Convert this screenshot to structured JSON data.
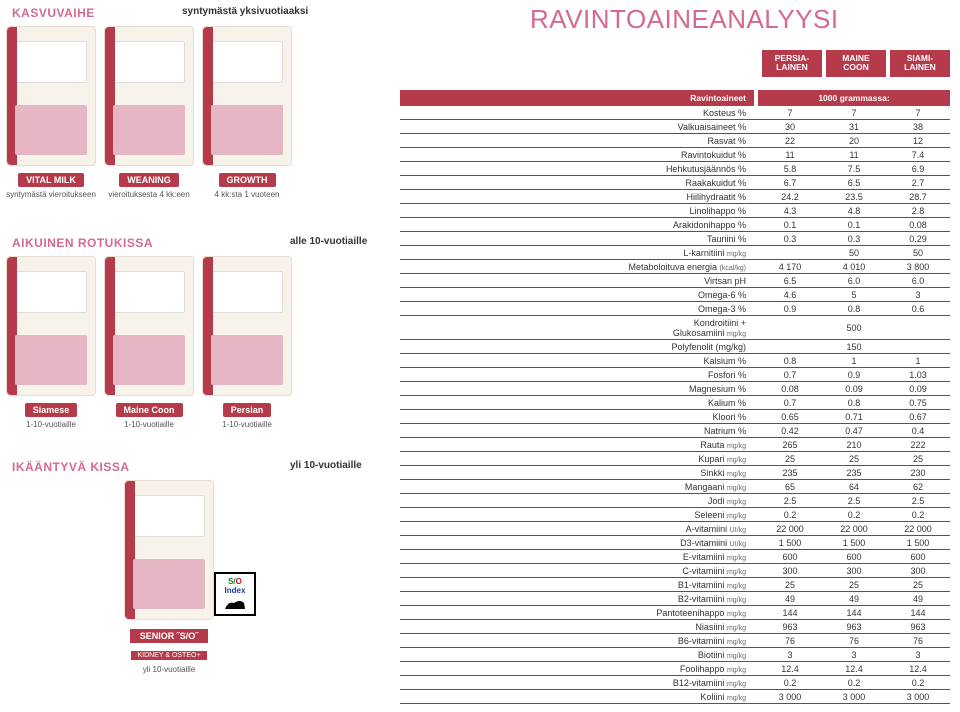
{
  "left": {
    "kasvuvaihe": "KASVUVAIHE",
    "syntymasta_top": "syntymästä yksivuotiaaksi",
    "row1": [
      {
        "pill": "VITAL MILK",
        "sub": "syntymästä vieroitukseen"
      },
      {
        "pill": "WEANING",
        "sub": "vieroituksesta 4 kk:een"
      },
      {
        "pill": "GROWTH",
        "sub": "4 kk:sta 1 vuoteen"
      }
    ],
    "aikuinen": "AIKUINEN ROTUKISSA",
    "alle10": "alle 10-vuotiaille",
    "row2": [
      {
        "pill": "Siamese",
        "sub": "1-10-vuotiaille"
      },
      {
        "pill": "Maine Coon",
        "sub": "1-10-vuotiaille"
      },
      {
        "pill": "Persian",
        "sub": "1-10-vuotiaille"
      }
    ],
    "ikaan": "IKÄÄNTYVÄ KISSA",
    "yli10": "yli 10-vuotiaille",
    "senior": {
      "pill": "SENIOR ˝S/O˝",
      "sub1": "KIDNEY & OSTEO+",
      "sub2": "yli 10-vuotiaille"
    },
    "so_index": {
      "s": "S/",
      "o": "O",
      "idx": "Index"
    }
  },
  "right": {
    "title": "RAVINTOAINEANALYYSI",
    "col_headers": [
      "PERSIA-\nLAINEN",
      "MAINE\nCOON",
      "SIAMI-\nLAINEN"
    ],
    "row_header_left": "Ravintoaineet",
    "row_header_right": "1000 grammassa:",
    "rows": [
      {
        "n": "Kosteus %",
        "v": [
          "7",
          "7",
          "7"
        ]
      },
      {
        "n": "Valkuaisaineet %",
        "v": [
          "30",
          "31",
          "38"
        ]
      },
      {
        "n": "Rasvat %",
        "v": [
          "22",
          "20",
          "12"
        ]
      },
      {
        "n": "Ravintokuidut %",
        "v": [
          "11",
          "11",
          "7.4"
        ]
      },
      {
        "n": "Hehkutusjäännös %",
        "v": [
          "5.8",
          "7.5",
          "6.9"
        ]
      },
      {
        "n": "Raakakuidut %",
        "v": [
          "6.7",
          "6.5",
          "2.7"
        ]
      },
      {
        "n": "Hiilihydraatit %",
        "v": [
          "24.2",
          "23.5",
          "28.7"
        ]
      },
      {
        "n": "Linolihappo %",
        "v": [
          "4.3",
          "4.8",
          "2.8"
        ]
      },
      {
        "n": "Arakidonihappo %",
        "v": [
          "0.1",
          "0.1",
          "0.08"
        ]
      },
      {
        "n": "Tauriini %",
        "v": [
          "0.3",
          "0.3",
          "0.29"
        ]
      },
      {
        "n": "L-karnitiini",
        "u": "mg/kg",
        "v": [
          "",
          "50",
          "50"
        ],
        "merge": "2r"
      },
      {
        "n": "Metaboloituva energia",
        "u": "(kcal/kg)",
        "v": [
          "4 170",
          "4 010",
          "3 800"
        ]
      },
      {
        "n": "Virtsan pH",
        "v": [
          "6.5",
          "6.0",
          "6.0"
        ]
      },
      {
        "n": "Omega-6 %",
        "v": [
          "4.6",
          "5",
          "3"
        ]
      },
      {
        "n": "Omega-3 %",
        "v": [
          "0.9",
          "0.8",
          "0.6"
        ]
      },
      {
        "n": "Kondroitiini +\nGlukosamiini",
        "u": "mg/kg",
        "v": [
          "500"
        ],
        "merge": "3",
        "dbl": true
      },
      {
        "n": "Polyfenolit (mg/kg)",
        "v": [
          "150"
        ],
        "merge": "3"
      },
      {
        "n": "Kalsium %",
        "v": [
          "0.8",
          "1",
          "1"
        ]
      },
      {
        "n": "Fosfori %",
        "v": [
          "0.7",
          "0.9",
          "1.03"
        ]
      },
      {
        "n": "Magnesium %",
        "v": [
          "0.08",
          "0.09",
          "0.09"
        ]
      },
      {
        "n": "Kalium %",
        "v": [
          "0.7",
          "0.8",
          "0.75"
        ]
      },
      {
        "n": "Kloori %",
        "v": [
          "0.65",
          "0.71",
          "0.67"
        ]
      },
      {
        "n": "Natrium %",
        "v": [
          "0.42",
          "0.47",
          "0.4"
        ]
      },
      {
        "n": "Rauta",
        "u": "mg/kg",
        "v": [
          "265",
          "210",
          "222"
        ]
      },
      {
        "n": "Kupari",
        "u": "mg/kg",
        "v": [
          "25",
          "25",
          "25"
        ]
      },
      {
        "n": "Sinkki",
        "u": "mg/kg",
        "v": [
          "235",
          "235",
          "230"
        ]
      },
      {
        "n": "Mangaani",
        "u": "mg/kg",
        "v": [
          "65",
          "64",
          "62"
        ]
      },
      {
        "n": "Jodi",
        "u": "mg/kg",
        "v": [
          "2.5",
          "2.5",
          "2.5"
        ]
      },
      {
        "n": "Seleeni",
        "u": "mg/kg",
        "v": [
          "0.2",
          "0.2",
          "0.2"
        ]
      },
      {
        "n": "A-vitamiini",
        "u": "UI/kg",
        "v": [
          "22 000",
          "22 000",
          "22 000"
        ]
      },
      {
        "n": "D3-vitamiini",
        "u": "UI/kg",
        "v": [
          "1 500",
          "1 500",
          "1 500"
        ]
      },
      {
        "n": "E-vitamiini",
        "u": "mg/kg",
        "v": [
          "600",
          "600",
          "600"
        ]
      },
      {
        "n": "C-vitamiini",
        "u": "mg/kg",
        "v": [
          "300",
          "300",
          "300"
        ]
      },
      {
        "n": "B1-vitamiini",
        "u": "mg/kg",
        "v": [
          "25",
          "25",
          "25"
        ]
      },
      {
        "n": "B2-vitamiini",
        "u": "mg/kg",
        "v": [
          "49",
          "49",
          "49"
        ]
      },
      {
        "n": "Pantoteenihappo",
        "u": "mg/kg",
        "v": [
          "144",
          "144",
          "144"
        ]
      },
      {
        "n": "Niasiini",
        "u": "mg/kg",
        "v": [
          "963",
          "963",
          "963"
        ]
      },
      {
        "n": "B6-vitamiini",
        "u": "mg/kg",
        "v": [
          "76",
          "76",
          "76"
        ]
      },
      {
        "n": "Biotiini",
        "u": "mg/kg",
        "v": [
          "3",
          "3",
          "3"
        ]
      },
      {
        "n": "Foolihappo",
        "u": "mg/kg",
        "v": [
          "12.4",
          "12.4",
          "12.4"
        ]
      },
      {
        "n": "B12-vitamiini",
        "u": "mg/kg",
        "v": [
          "0.2",
          "0.2",
          "0.2"
        ]
      },
      {
        "n": "Koliini",
        "u": "mg/kg",
        "v": [
          "3 000",
          "3 000",
          "3 000"
        ]
      }
    ]
  },
  "colors": {
    "brand_red": "#b63b4a",
    "brand_pink": "#d46a8d",
    "bag_bg": "#f7f2ea",
    "index_green": "#127a2b",
    "index_red": "#c11",
    "index_blue": "#1a3ea8"
  }
}
